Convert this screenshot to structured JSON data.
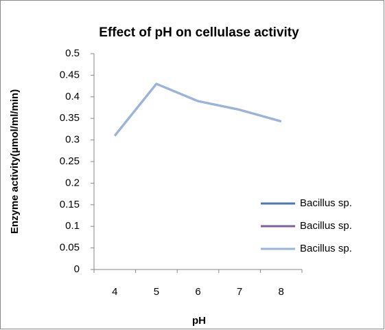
{
  "chart_data": {
    "type": "line",
    "title": "Effect of pH on cellulase activity",
    "x_label": "pH",
    "y_label": "Enzyme  activity(µmol/ml/min)",
    "categories": [
      "4",
      "5",
      "6",
      "7",
      "8"
    ],
    "series": [
      {
        "name": "Bacillus sp.",
        "color": "#4a7ab0",
        "values": [
          0.31,
          0.43,
          0.39,
          0.37,
          0.343
        ]
      },
      {
        "name": "Bacillus sp.",
        "color": "#7d5fa0",
        "values": [
          0.31,
          0.43,
          0.39,
          0.37,
          0.343
        ]
      },
      {
        "name": "Bacillus sp.",
        "color": "#9ab5dc",
        "values": [
          0.31,
          0.43,
          0.39,
          0.37,
          0.343
        ]
      }
    ],
    "ylim": [
      0,
      0.5
    ],
    "yticks": [
      0,
      0.05,
      0.1,
      0.15,
      0.2,
      0.25,
      0.3,
      0.35,
      0.4,
      0.45,
      0.5
    ],
    "legend": "right",
    "grid": false
  }
}
